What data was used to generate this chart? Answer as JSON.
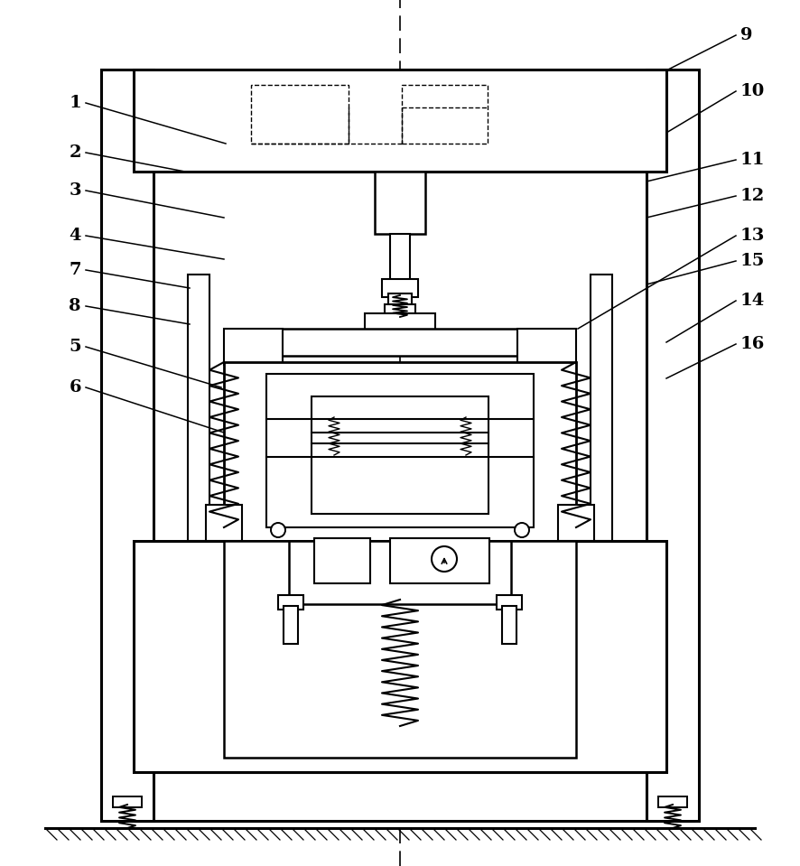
{
  "bg_color": "#ffffff",
  "lc": "#000000",
  "figsize": [
    8.86,
    9.59
  ],
  "dpi": 100
}
